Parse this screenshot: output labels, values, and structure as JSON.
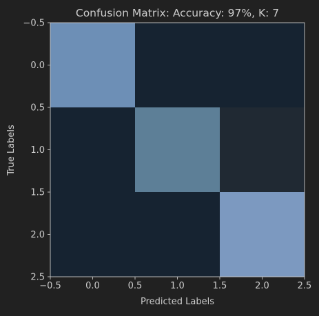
{
  "chart_data": {
    "type": "heatmap",
    "title": "Confusion Matrix: Accuracy: 97%, K: 7",
    "xlabel": "Predicted Labels",
    "ylabel": "True Labels",
    "xlim": [
      -0.5,
      2.5
    ],
    "ylim": [
      2.5,
      -0.5
    ],
    "x_ticks": [
      "−0.5",
      "0.0",
      "0.5",
      "1.0",
      "1.5",
      "2.0",
      "2.5"
    ],
    "y_ticks": [
      "−0.5",
      "0.0",
      "0.5",
      "1.0",
      "1.5",
      "2.0",
      "2.5"
    ],
    "x_tick_values": [
      -0.5,
      0.0,
      0.5,
      1.0,
      1.5,
      2.0,
      2.5
    ],
    "y_tick_values": [
      -0.5,
      0.0,
      0.5,
      1.0,
      1.5,
      2.0,
      2.5
    ],
    "rows": [
      "0",
      "1",
      "2"
    ],
    "columns": [
      "0",
      "1",
      "2"
    ],
    "values": [
      [
        1.0,
        0.0,
        0.0
      ],
      [
        0.0,
        0.81,
        0.1
      ],
      [
        0.0,
        0.0,
        1.0
      ]
    ],
    "cell_colors": [
      [
        "#6d8fb6",
        "#162331",
        "#162331"
      ],
      [
        "#162331",
        "#5d7f97",
        "#202933"
      ],
      [
        "#162331",
        "#162331",
        "#7c99c0"
      ]
    ],
    "grid": false,
    "legend": "none"
  },
  "colors": {
    "background": "#212121",
    "text": "#cccccc",
    "axis": "#c8c8c8"
  }
}
